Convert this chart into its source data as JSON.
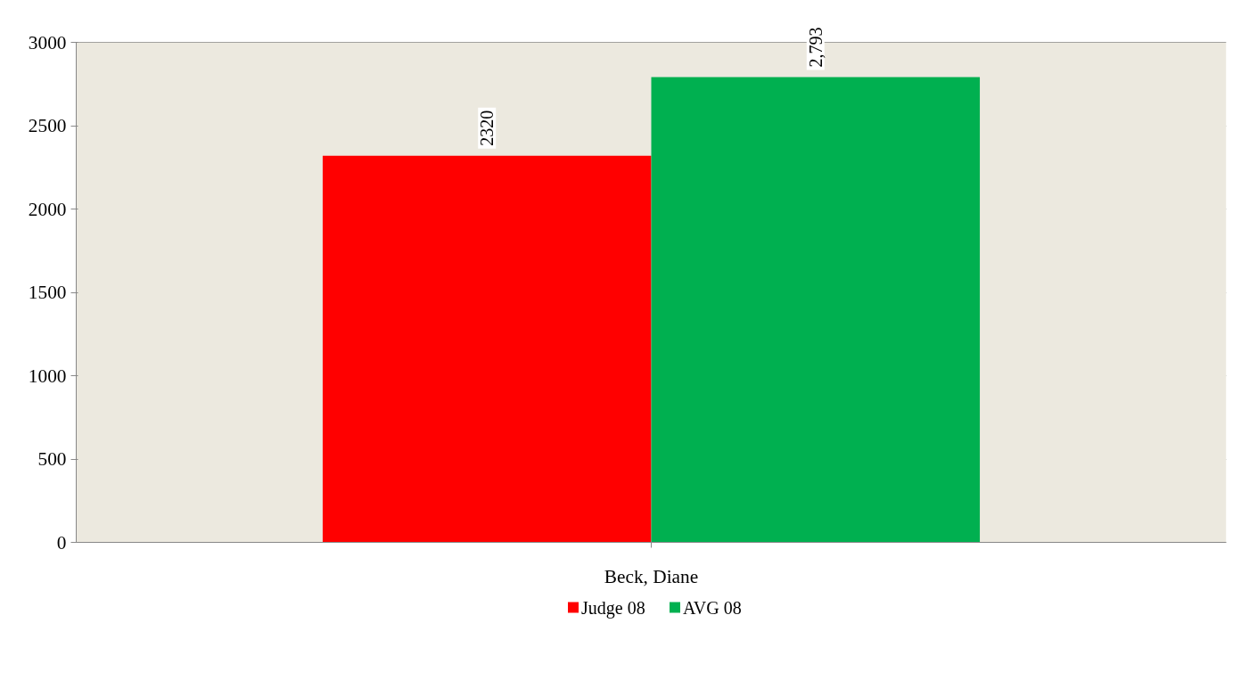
{
  "chart_data": {
    "type": "bar",
    "categories": [
      "Beck, Diane"
    ],
    "series": [
      {
        "name": "Judge 08",
        "color": "#ff0000",
        "values": [
          2320
        ],
        "value_labels": [
          "2320"
        ]
      },
      {
        "name": "AVG 08",
        "color": "#00b050",
        "values": [
          2793
        ],
        "value_labels": [
          "2,793"
        ]
      }
    ],
    "ylim": [
      0,
      3000
    ],
    "yticks": [
      0,
      500,
      1000,
      1500,
      2000,
      2500,
      3000
    ],
    "grid": "y",
    "legend": "bottom"
  }
}
